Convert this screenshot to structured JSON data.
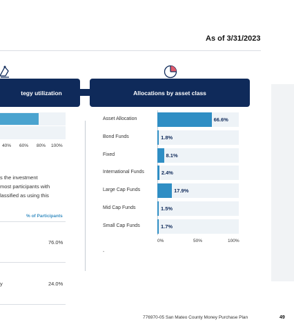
{
  "header": {
    "as_of": "As of 3/31/2023"
  },
  "left_panel": {
    "title": "tegy utilization",
    "ticks": [
      "40%",
      "60%",
      "80%",
      "100%"
    ],
    "paragraph": [
      "s the investment",
      "most participants with",
      "lassified as using this"
    ],
    "table_header": "% of Participants",
    "rows": [
      {
        "label": "",
        "value": "76.0%"
      },
      {
        "label": "y",
        "value": "24.0%"
      }
    ]
  },
  "right_panel": {
    "title": "Allocations by asset class",
    "footnote": "-"
  },
  "chart_data": {
    "type": "bar",
    "orientation": "horizontal",
    "title": "Allocations by asset class",
    "categories": [
      "Asset Allocation",
      "Bond Funds",
      "Fixed",
      "International Funds",
      "Large Cap Funds",
      "Mid Cap Funds",
      "Small Cap Funds"
    ],
    "values": [
      66.6,
      1.8,
      8.1,
      2.4,
      17.9,
      1.5,
      1.7
    ],
    "value_labels": [
      "66.6%",
      "1.8%",
      "8.1%",
      "2.4%",
      "17.9%",
      "1.5%",
      "1.7%"
    ],
    "xticks": [
      "0%",
      "50%",
      "100%"
    ],
    "xlim": [
      0,
      100
    ],
    "bar_color": "#2f8ec4",
    "grid": false
  },
  "colors": {
    "header_bg": "#0f2a5a",
    "accent": "#2f8ec4",
    "light_bar": "#4aa3cf"
  },
  "footer": {
    "text": "776970-05 San Mateo County Money Purchase Plan",
    "page": "49"
  }
}
